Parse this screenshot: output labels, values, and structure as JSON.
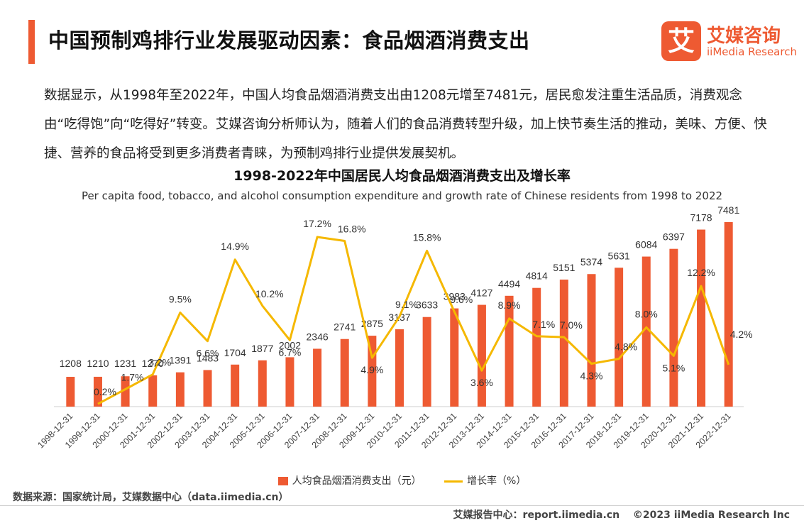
{
  "header": {
    "title": "中国预制鸡排行业发展驱动因素：食品烟酒消费支出",
    "logo_mark": "艾",
    "logo_cn": "艾媒咨询",
    "logo_en": "iiMedia Research"
  },
  "intro": "数据显示，从1998年至2022年，中国人均食品烟酒消费支出由1208元增至7481元，居民愈发注重生活品质，消费观念由“吃得饱”向“吃得好”转变。艾媒咨询分析师认为，随着人们的食品消费转型升级，加上快节奏生活的推动，美味、方便、快捷、营养的食品将受到更多消费者青睐，为预制鸡排行业提供发展契机。",
  "chart_data": {
    "type": "bar",
    "title": "1998-2022年中国居民人均食品烟酒消费支出及增长率",
    "subtitle": "Per capita food, tobacco, and alcohol consumption expenditure and growth rate of Chinese residents from 1998 to 2022",
    "categories": [
      "1998-12-31",
      "1999-12-31",
      "2000-12-31",
      "2001-12-31",
      "2002-12-31",
      "2003-12-31",
      "2004-12-31",
      "2005-12-31",
      "2006-12-31",
      "2007-12-31",
      "2008-12-31",
      "2009-12-31",
      "2010-12-31",
      "2011-12-31",
      "2012-12-31",
      "2013-12-31",
      "2014-12-31",
      "2015-12-31",
      "2016-12-31",
      "2017-12-31",
      "2018-12-31",
      "2019-12-31",
      "2020-12-31",
      "2021-12-31",
      "2022-12-31"
    ],
    "series": [
      {
        "name": "人均食品烟酒消费支出（元）",
        "type": "bar",
        "color": "#ee5a32",
        "values": [
          1208,
          1210,
          1231,
          1270,
          1391,
          1483,
          1704,
          1877,
          2002,
          2346,
          2741,
          2875,
          3137,
          3633,
          3983,
          4127,
          4494,
          4814,
          5151,
          5374,
          5631,
          6084,
          6397,
          7178,
          7481
        ]
      },
      {
        "name": "增长率（%）",
        "type": "line",
        "color": "#f5b800",
        "values": [
          null,
          0.2,
          1.7,
          3.2,
          9.5,
          6.6,
          14.9,
          10.2,
          6.7,
          17.2,
          16.8,
          4.9,
          9.1,
          15.8,
          9.6,
          3.6,
          8.9,
          7.1,
          7.0,
          4.3,
          4.8,
          8.0,
          5.1,
          12.2,
          4.2
        ],
        "labels": [
          null,
          "0.2%",
          "1.7%",
          "3.2%",
          "9.5%",
          "6.6%",
          "14.9%",
          "10.2%",
          "6.7%",
          "17.2%",
          "16.8%",
          "4.9%",
          "9.1%",
          "15.8%",
          "9.6%",
          "3.6%",
          "8.9%",
          "7.1%",
          "7.0%",
          "4.3%",
          "4.8%",
          "8.0%",
          "5.1%",
          "12.2%",
          "4.2%"
        ]
      }
    ],
    "legend_position": "bottom",
    "grid": false
  },
  "source": "数据来源：国家统计局，艾媒数据中心（data.iimedia.cn）",
  "footer": {
    "report_center": "艾媒报告中心：report.iimedia.cn",
    "copyright": "©2023  iiMedia Research  Inc"
  }
}
